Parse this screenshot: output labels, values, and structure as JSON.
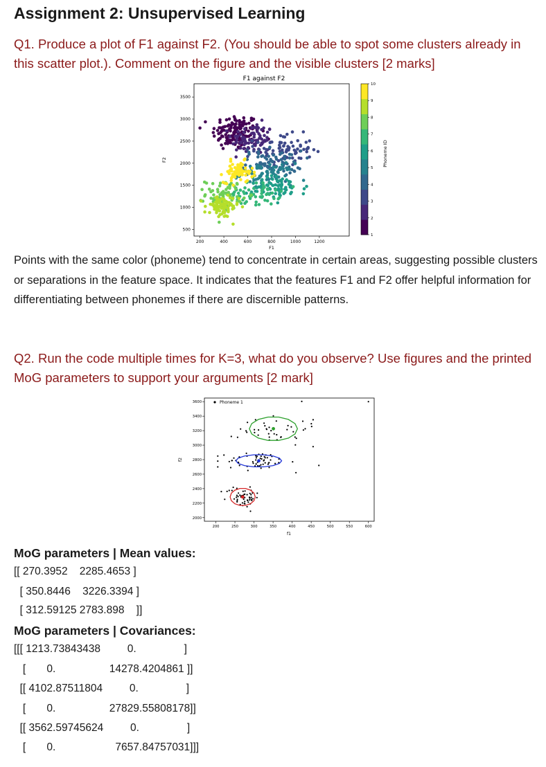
{
  "doc": {
    "title": "Assignment 2: Unsupervised Learning",
    "q1": "Q1. Produce a plot of F1 against F2. (You should be able to spot some clusters already in this scatter plot.). Comment on the figure and the visible clusters [2 marks]",
    "answer1": "Points with the same color (phoneme) tend to concentrate in certain areas, suggesting possible clusters or separations in the feature space. It indicates that the features F1 and F2 offer helpful information for differentiating between phonemes if there are discernible patterns.",
    "q2": "Q2. Run the code multiple times for K=3, what do you observe? Use figures and the printed MoG parameters to support your arguments [2 mark]"
  },
  "chart_data": [
    {
      "type": "scatter",
      "title": "F1 against F2",
      "xlabel": "F1",
      "ylabel": "F2",
      "xticks": [
        "200",
        "400",
        "600",
        "800",
        "1000",
        "1200"
      ],
      "yticks": [
        "500",
        "1000",
        "1500",
        "2000",
        "2500",
        "3000",
        "3500"
      ],
      "xlim": [
        150,
        1450
      ],
      "ylim": [
        350,
        3800
      ],
      "colorbar": {
        "label": "Phoneme ID",
        "min": 1,
        "max": 10,
        "ticks": [
          "1",
          "2",
          "3",
          "4",
          "5",
          "6",
          "7",
          "8",
          "9",
          "10"
        ],
        "colormap": "viridis"
      },
      "clusters": [
        {
          "phoneme": 1,
          "color": "#440154",
          "center": [
            500,
            2700
          ],
          "spread": [
            180,
            380
          ],
          "n": 140
        },
        {
          "phoneme": 2,
          "color": "#482878",
          "center": [
            640,
            2550
          ],
          "spread": [
            160,
            320
          ],
          "n": 90
        },
        {
          "phoneme": 3,
          "color": "#3e4989",
          "center": [
            900,
            2300
          ],
          "spread": [
            220,
            320
          ],
          "n": 80
        },
        {
          "phoneme": 4,
          "color": "#31688e",
          "center": [
            800,
            2000
          ],
          "spread": [
            230,
            260
          ],
          "n": 80
        },
        {
          "phoneme": 5,
          "color": "#26828e",
          "center": [
            760,
            1750
          ],
          "spread": [
            200,
            220
          ],
          "n": 70
        },
        {
          "phoneme": 6,
          "color": "#1f9e89",
          "center": [
            850,
            1450
          ],
          "spread": [
            230,
            230
          ],
          "n": 70
        },
        {
          "phoneme": 7,
          "color": "#35b779",
          "center": [
            650,
            1300
          ],
          "spread": [
            200,
            230
          ],
          "n": 60
        },
        {
          "phoneme": 8,
          "color": "#6ece58",
          "center": [
            400,
            1300
          ],
          "spread": [
            140,
            300
          ],
          "n": 70
        },
        {
          "phoneme": 9,
          "color": "#b5de2b",
          "center": [
            380,
            1000
          ],
          "spread": [
            130,
            230
          ],
          "n": 80
        },
        {
          "phoneme": 10,
          "color": "#fde725",
          "center": [
            520,
            1800
          ],
          "spread": [
            110,
            220
          ],
          "n": 70
        }
      ]
    },
    {
      "type": "scatter",
      "title": "",
      "xlabel": "f1",
      "ylabel": "f2",
      "legend": [
        "Phoneme 1"
      ],
      "legend_position": "top-left",
      "xticks": [
        "200",
        "250",
        "300",
        "350",
        "400",
        "450",
        "500",
        "550",
        "600"
      ],
      "yticks": [
        "2000",
        "2200",
        "2400",
        "2600",
        "2800",
        "3000",
        "3200",
        "3400",
        "3600"
      ],
      "xlim": [
        170,
        615
      ],
      "ylim": [
        1950,
        3650
      ],
      "gaussians": [
        {
          "mean": [
            270.3952,
            2285.4653
          ],
          "color": "#d62728",
          "rx": 33,
          "ry": 120
        },
        {
          "mean": [
            350.8446,
            3226.3394
          ],
          "color": "#2ca02c",
          "rx": 63,
          "ry": 165
        },
        {
          "mean": [
            312.59125,
            2783.898
          ],
          "color": "#1f33d6",
          "rx": 60,
          "ry": 85
        }
      ],
      "point_color": "#000000"
    }
  ],
  "mog": {
    "mean_heading": "MoG parameters | Mean values:",
    "mean_lines": [
      "[[ 270.3952    2285.4653 ]",
      "  [ 350.8446    3226.3394 ]",
      "  [ 312.59125 2783.898    ]]"
    ],
    "cov_heading": "MoG parameters | Covariances:",
    "cov_lines": [
      "[[[ 1213.73843438         0.                ]",
      "   [       0.                  14278.4204861 ]]",
      "  [[ 4102.87511804         0.                ]",
      "   [       0.                  27829.55808178]]",
      "  [[ 3562.59745624         0.                ]",
      "   [       0.                    7657.84757031]]]"
    ]
  }
}
